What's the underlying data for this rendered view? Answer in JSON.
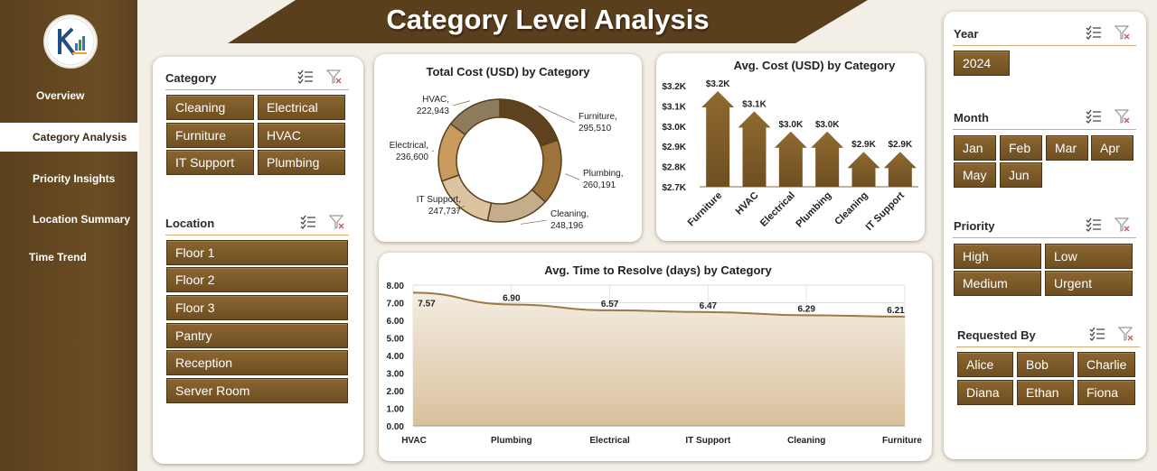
{
  "title": "Category Level Analysis",
  "nav": [
    {
      "label": "Overview",
      "active": false
    },
    {
      "label": "Category Analysis",
      "active": true
    },
    {
      "label": "Priority Insights",
      "active": false
    },
    {
      "label": "Location Summary",
      "active": false
    },
    {
      "label": "Time Trend",
      "active": false
    }
  ],
  "slicers": {
    "category": {
      "title": "Category",
      "items": [
        "Cleaning",
        "Electrical",
        "Furniture",
        "HVAC",
        "IT Support",
        "Plumbing"
      ]
    },
    "location": {
      "title": "Location",
      "items": [
        "Floor 1",
        "Floor 2",
        "Floor 3",
        "Pantry",
        "Reception",
        "Server Room"
      ]
    },
    "year": {
      "title": "Year",
      "items": [
        "2024"
      ]
    },
    "month": {
      "title": "Month",
      "items": [
        "Jan",
        "Feb",
        "Mar",
        "Apr",
        "May",
        "Jun"
      ]
    },
    "priority": {
      "title": "Priority",
      "items": [
        "High",
        "Low",
        "Medium",
        "Urgent"
      ]
    },
    "requested_by": {
      "title": "Requested By",
      "items": [
        "Alice",
        "Bob",
        "Charlie",
        "Diana",
        "Ethan",
        "Fiona"
      ]
    }
  },
  "colors": {
    "brown_dark": "#5a3f1c",
    "brown": "#7b5a2b",
    "tan": "#c9a977",
    "accent_line": "#d9a870"
  },
  "chart_data": [
    {
      "type": "pie",
      "title": "Total Cost (USD) by Category",
      "categories": [
        "Furniture",
        "Plumbing",
        "Cleaning",
        "IT Support",
        "Electrical",
        "HVAC"
      ],
      "values": [
        295510,
        260191,
        248196,
        247737,
        236600,
        222943
      ],
      "labels": [
        "Furniture,",
        "295,510",
        "Plumbing,",
        "260,191",
        "Cleaning,",
        "248,196",
        "IT Support,",
        "247,737",
        "Electrical,",
        "236,600",
        "HVAC,",
        "222,943"
      ],
      "slice_colors": [
        "#5e4220",
        "#9c733a",
        "#c4ad8a",
        "#ddc4a0",
        "#c99b5e",
        "#8f7c5c"
      ]
    },
    {
      "type": "bar",
      "title": "Avg. Cost (USD) by Category",
      "categories": [
        "Furniture",
        "HVAC",
        "Electrical",
        "Plumbing",
        "Cleaning",
        "IT Support"
      ],
      "values": [
        3200,
        3100,
        3000,
        3000,
        2900,
        2900
      ],
      "data_labels": [
        "$3.2K",
        "$3.1K",
        "$3.0K",
        "$3.0K",
        "$2.9K",
        "$2.9K"
      ],
      "ylim": [
        2700,
        3200
      ],
      "yticks": [
        "$3.2K",
        "$3.1K",
        "$3.0K",
        "$2.9K",
        "$2.8K",
        "$2.7K"
      ]
    },
    {
      "type": "area",
      "title": "Avg. Time to Resolve (days) by Category",
      "categories": [
        "HVAC",
        "Plumbing",
        "Electrical",
        "IT Support",
        "Cleaning",
        "Furniture"
      ],
      "values": [
        7.57,
        6.9,
        6.57,
        6.47,
        6.29,
        6.21
      ],
      "data_labels": [
        "7.57",
        "6.90",
        "6.57",
        "6.47",
        "6.29",
        "6.21"
      ],
      "ylim": [
        0,
        8
      ],
      "yticks": [
        "8.00",
        "7.00",
        "6.00",
        "5.00",
        "4.00",
        "3.00",
        "2.00",
        "1.00",
        "0.00"
      ],
      "grid": true
    }
  ]
}
